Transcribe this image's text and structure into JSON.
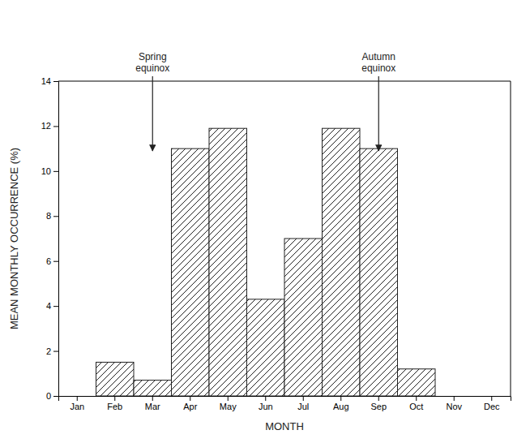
{
  "chart_data": {
    "type": "bar",
    "categories": [
      "Jan",
      "Feb",
      "Mar",
      "Apr",
      "May",
      "Jun",
      "Jul",
      "Aug",
      "Sep",
      "Oct",
      "Nov",
      "Dec"
    ],
    "values": [
      0,
      1.5,
      0.7,
      11.0,
      11.9,
      4.3,
      7.0,
      11.9,
      11.0,
      1.2,
      0,
      0
    ],
    "color": "white",
    "xlabel": "MONTH",
    "ylabel": "MEAN MONTHLY OCCURRENCE (%)",
    "ylim": [
      0,
      14
    ],
    "yticks": [
      0,
      2,
      4,
      6,
      8,
      10,
      12,
      14
    ],
    "grid": false,
    "annotations": [
      {
        "text": "Spring\nequinox",
        "x": "Mar",
        "y": 10.9
      },
      {
        "text": "Autumn\nequinox",
        "x": "Sep",
        "y": 10.9
      }
    ]
  }
}
